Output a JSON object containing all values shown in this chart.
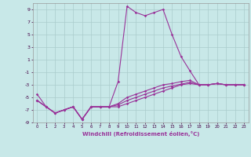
{
  "xlabel": "Windchill (Refroidissement éolien,°C)",
  "x": [
    0,
    1,
    2,
    3,
    4,
    5,
    6,
    7,
    8,
    9,
    10,
    11,
    12,
    13,
    14,
    15,
    16,
    17,
    18,
    19,
    20,
    21,
    22,
    23
  ],
  "line1": [
    -4.5,
    -6.5,
    -7.5,
    -7.0,
    -6.5,
    -8.5,
    -6.5,
    -6.5,
    -6.5,
    -2.5,
    9.5,
    8.5,
    8.0,
    8.5,
    9.0,
    5.0,
    1.5,
    -0.8,
    -3.0,
    -3.0,
    -2.8,
    -3.0,
    -3.0,
    -3.0
  ],
  "line2": [
    -5.5,
    -6.5,
    -7.5,
    -7.0,
    -6.5,
    -8.5,
    -6.5,
    -6.5,
    -6.5,
    -6.0,
    -5.0,
    -4.5,
    -4.0,
    -3.5,
    -3.0,
    -2.8,
    -2.5,
    -2.3,
    -3.0,
    -3.0,
    -2.8,
    -3.0,
    -3.0,
    -3.0
  ],
  "line3": [
    -5.5,
    -6.5,
    -7.5,
    -7.0,
    -6.5,
    -8.5,
    -6.5,
    -6.5,
    -6.5,
    -6.2,
    -5.5,
    -5.0,
    -4.5,
    -4.0,
    -3.5,
    -3.2,
    -2.9,
    -2.6,
    -3.0,
    -3.0,
    -2.8,
    -3.0,
    -3.0,
    -3.0
  ],
  "line4": [
    -5.5,
    -6.5,
    -7.5,
    -7.0,
    -6.5,
    -8.5,
    -6.5,
    -6.5,
    -6.5,
    -6.5,
    -6.0,
    -5.5,
    -5.0,
    -4.5,
    -4.0,
    -3.5,
    -3.0,
    -2.8,
    -3.0,
    -3.0,
    -2.8,
    -3.0,
    -3.0,
    -3.0
  ],
  "bg_color": "#c8e8e8",
  "grid_color": "#aacccc",
  "line_color": "#993399",
  "ylim": [
    -9,
    10
  ],
  "yticks": [
    -9,
    -7,
    -5,
    -3,
    -1,
    1,
    3,
    5,
    7,
    9
  ],
  "xticks": [
    0,
    1,
    2,
    3,
    4,
    5,
    6,
    7,
    8,
    9,
    10,
    11,
    12,
    13,
    14,
    15,
    16,
    17,
    18,
    19,
    20,
    21,
    22,
    23
  ]
}
